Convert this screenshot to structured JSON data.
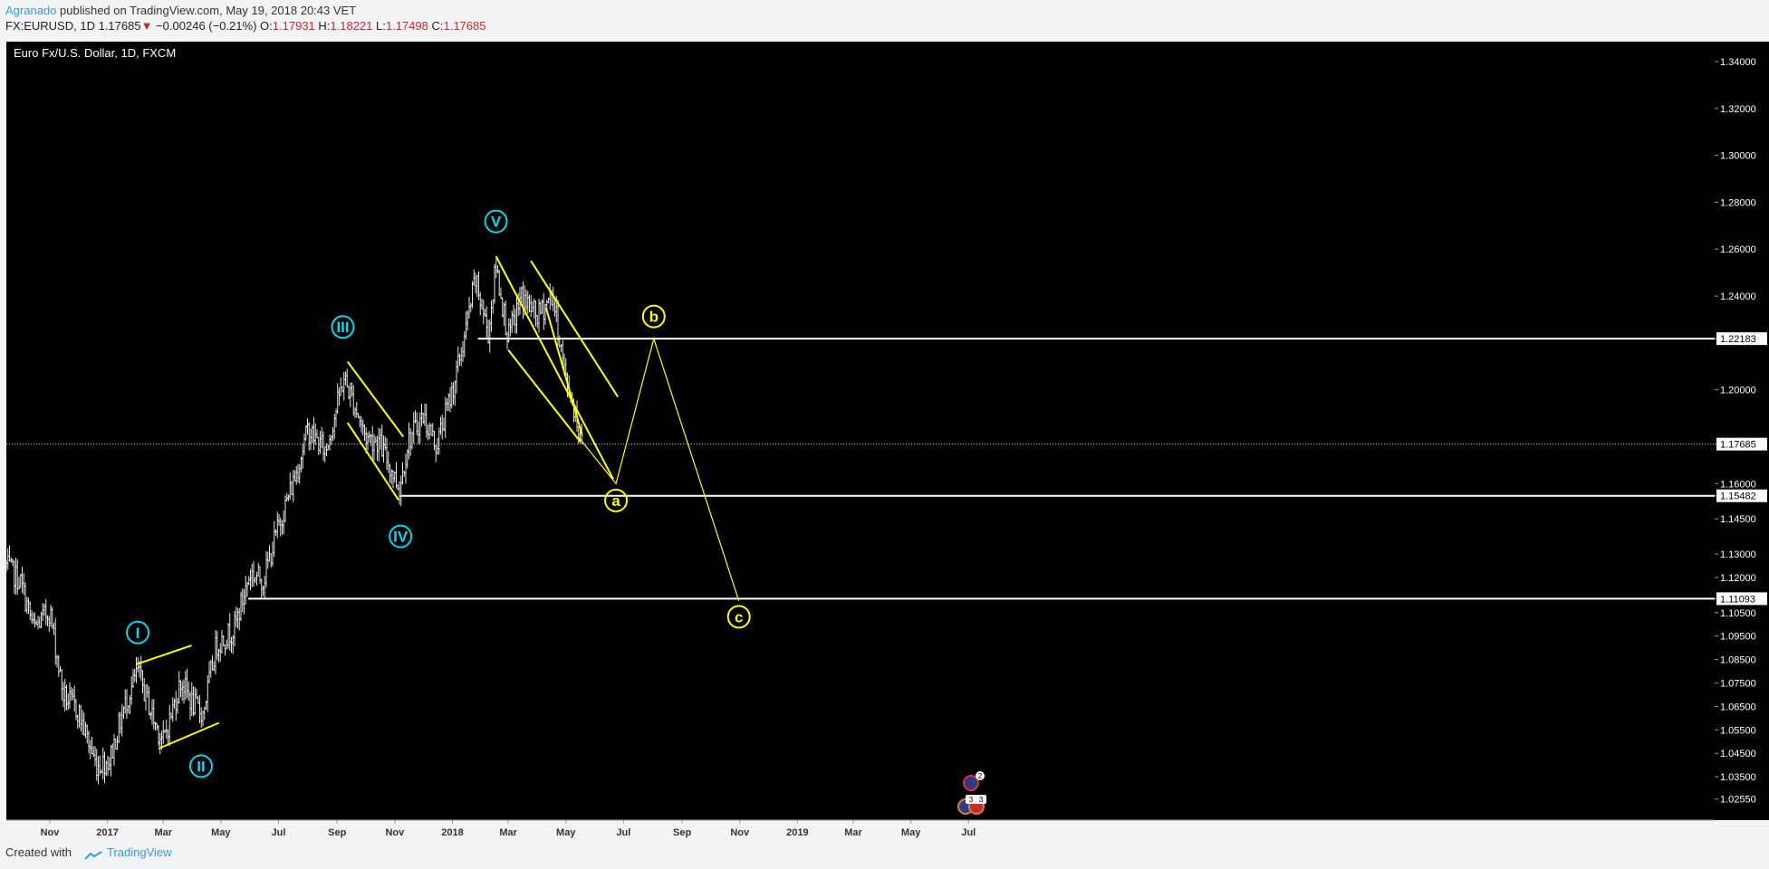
{
  "header": {
    "author": "Agranado",
    "published": " published on TradingView.com, May 19, 2018 20:43 VET",
    "symbol": "FX:EURUSD, 1D",
    "last": "1.17685",
    "change": "−0.00246 (−0.21%)",
    "o_label": "O:",
    "o": "1.17931",
    "h_label": "H:",
    "h": "1.18221",
    "l_label": "L:",
    "l": "1.17498",
    "c_label": "C:",
    "c": "1.17685"
  },
  "footer": {
    "created_with": "Created with",
    "brand": "TradingView"
  },
  "chart_data": {
    "type": "candlestick",
    "title": "Euro Fx/U.S. Dollar, 1D, FXCM",
    "colors": {
      "background": "#000000",
      "bars": "#ffffff",
      "drawings": "#ffff00",
      "wave_labels": "#00d8f0",
      "axis_text": "#ffffff"
    },
    "ylim": [
      1.0165,
      1.3485
    ],
    "x_tick_labels": [
      "Nov",
      "2017",
      "Mar",
      "May",
      "Jul",
      "Sep",
      "Nov",
      "2018",
      "Mar",
      "May",
      "Jul",
      "Sep",
      "Nov",
      "2019",
      "Mar",
      "May",
      "Jul"
    ],
    "y_tick_labels": [
      "1.34000",
      "1.32000",
      "1.30000",
      "1.28000",
      "1.26000",
      "1.24000",
      "1.22183",
      "1.20000",
      "1.17685",
      "1.16000",
      "1.15482",
      "1.14500",
      "1.13000",
      "1.12000",
      "1.11093",
      "1.10500",
      "1.09500",
      "1.08500",
      "1.07500",
      "1.06500",
      "1.05500",
      "1.04500",
      "1.03500",
      "1.02550"
    ],
    "y_ticks": [
      1.34,
      1.32,
      1.3,
      1.28,
      1.26,
      1.24,
      1.22183,
      1.2,
      1.17685,
      1.16,
      1.15482,
      1.145,
      1.13,
      1.12,
      1.11093,
      1.105,
      1.095,
      1.085,
      1.075,
      1.065,
      1.055,
      1.045,
      1.035,
      1.0255
    ],
    "highlighted_ticks": [
      1.22183,
      1.17685,
      1.15482,
      1.11093
    ],
    "price_path": [
      [
        "2016-09-16",
        1.125
      ],
      [
        "2016-10-01",
        1.118
      ],
      [
        "2016-10-15",
        1.098
      ],
      [
        "2016-11-01",
        1.106
      ],
      [
        "2016-11-15",
        1.07
      ],
      [
        "2016-12-01",
        1.063
      ],
      [
        "2016-12-20",
        1.04
      ],
      [
        "2017-01-03",
        1.042
      ],
      [
        "2017-01-20",
        1.066
      ],
      [
        "2017-02-02",
        1.08
      ],
      [
        "2017-02-20",
        1.058
      ],
      [
        "2017-03-01",
        1.05
      ],
      [
        "2017-03-20",
        1.076
      ],
      [
        "2017-04-01",
        1.066
      ],
      [
        "2017-04-12",
        1.062
      ],
      [
        "2017-04-26",
        1.091
      ],
      [
        "2017-05-15",
        1.098
      ],
      [
        "2017-06-01",
        1.122
      ],
      [
        "2017-06-15",
        1.119
      ],
      [
        "2017-07-01",
        1.142
      ],
      [
        "2017-07-20",
        1.165
      ],
      [
        "2017-08-01",
        1.183
      ],
      [
        "2017-08-20",
        1.174
      ],
      [
        "2017-09-08",
        1.205
      ],
      [
        "2017-09-20",
        1.193
      ],
      [
        "2017-10-01",
        1.18
      ],
      [
        "2017-10-15",
        1.178
      ],
      [
        "2017-11-06",
        1.158
      ],
      [
        "2017-11-15",
        1.178
      ],
      [
        "2017-12-01",
        1.189
      ],
      [
        "2017-12-15",
        1.176
      ],
      [
        "2018-01-01",
        1.2
      ],
      [
        "2018-01-12",
        1.219
      ],
      [
        "2018-01-25",
        1.247
      ],
      [
        "2018-02-08",
        1.224
      ],
      [
        "2018-02-16",
        1.253
      ],
      [
        "2018-03-01",
        1.222
      ],
      [
        "2018-03-15",
        1.24
      ],
      [
        "2018-04-01",
        1.231
      ],
      [
        "2018-04-17",
        1.241
      ],
      [
        "2018-05-01",
        1.204
      ],
      [
        "2018-05-10",
        1.192
      ],
      [
        "2018-05-18",
        1.177
      ]
    ],
    "markers": [
      {
        "label": "I",
        "date": "2017-02-02",
        "price": 1.0965
      },
      {
        "label": "II",
        "date": "2017-04-10",
        "price": 1.0395
      },
      {
        "label": "III",
        "date": "2017-09-07",
        "price": 1.2268
      },
      {
        "label": "IV",
        "date": "2017-11-07",
        "price": 1.1375
      },
      {
        "label": "V",
        "date": "2018-02-16",
        "price": 1.2718
      }
    ],
    "projection_labels": [
      {
        "label": "a",
        "date": "2018-06-23",
        "price": 1.1528
      },
      {
        "label": "b",
        "date": "2018-08-02",
        "price": 1.2313
      },
      {
        "label": "c",
        "date": "2018-10-31",
        "price": 1.1032
      }
    ],
    "projection_path": [
      [
        "2018-05-14",
        1.18
      ],
      [
        "2018-06-23",
        1.16
      ],
      [
        "2018-08-02",
        1.2218
      ],
      [
        "2018-10-31",
        1.11
      ]
    ],
    "channels": [
      [
        [
          "2017-02-01",
          1.083
        ],
        [
          "2017-03-31",
          1.091
        ]
      ],
      [
        [
          "2017-02-24",
          1.047
        ],
        [
          "2017-04-29",
          1.058
        ]
      ],
      [
        [
          "2017-09-12",
          1.212
        ],
        [
          "2017-11-10",
          1.18
        ]
      ],
      [
        [
          "2017-09-12",
          1.186
        ],
        [
          "2017-11-05",
          1.153
        ]
      ],
      [
        [
          "2018-02-16",
          1.257
        ],
        [
          "2018-06-20",
          1.162
        ]
      ],
      [
        [
          "2018-03-01",
          1.217
        ],
        [
          "2018-05-16",
          1.178
        ]
      ],
      [
        [
          "2018-04-10",
          1.235
        ],
        [
          "2018-05-18",
          1.181
        ]
      ],
      [
        [
          "2018-03-25",
          1.255
        ],
        [
          "2018-06-25",
          1.197
        ]
      ]
    ],
    "hlines": [
      {
        "price": 1.22183,
        "from": "2018-01-28"
      },
      {
        "price": 1.15482,
        "from": "2017-11-08"
      },
      {
        "price": 1.11093,
        "from": "2017-05-30"
      }
    ],
    "last_price_line": 1.17685,
    "event_badges": [
      "2",
      "3",
      "3"
    ]
  }
}
